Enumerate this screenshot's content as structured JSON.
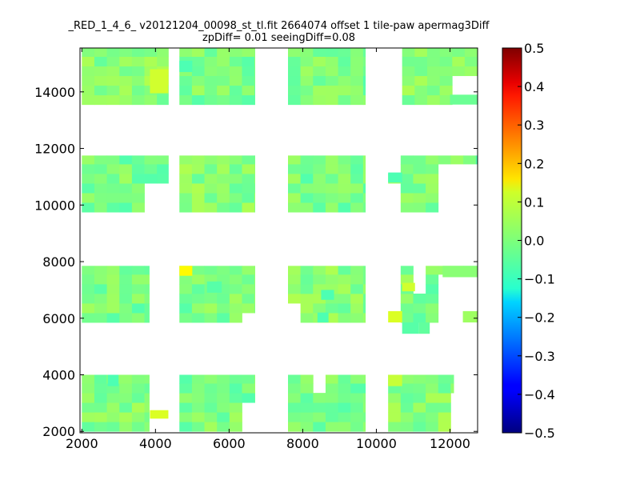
{
  "chart_data": {
    "type": "heatmap",
    "title_line1": "_RED_1_4_6_ v20121204_00098_st_tl.fit 2664074 offset 1 tile-paw apermag3Diff",
    "title_line2": "zpDiff= 0.01 seeingDiff=0.08",
    "xlabel": "",
    "ylabel": "",
    "xlim": [
      1950,
      12750
    ],
    "ylim": [
      1950,
      15550
    ],
    "x_ticks": [
      2000,
      4000,
      6000,
      8000,
      10000,
      12000
    ],
    "y_ticks": [
      2000,
      4000,
      6000,
      8000,
      10000,
      12000,
      14000
    ],
    "x_tick_labels": [
      "2000",
      "4000",
      "6000",
      "8000",
      "10000",
      "12000"
    ],
    "y_tick_labels": [
      "2000",
      "4000",
      "6000",
      "8000",
      "10000",
      "12000",
      "14000"
    ],
    "colorbar": {
      "colormap": "jet",
      "range": [
        -0.5,
        0.5
      ],
      "ticks": [
        0.5,
        0.4,
        0.3,
        0.2,
        0.1,
        0.0,
        -0.1,
        -0.2,
        -0.3,
        -0.4,
        -0.5
      ],
      "tick_labels": [
        "0.5",
        "0.4",
        "0.3",
        "0.2",
        "0.1",
        "0.0",
        "−0.1",
        "−0.2",
        "−0.3",
        "−0.4",
        "−0.5"
      ]
    },
    "cell_size": [
      340,
      340
    ],
    "base_value": 0.0,
    "detectors": [
      {
        "x": [
          2000,
          3830
        ],
        "y": [
          2000,
          4000
        ]
      },
      {
        "x": [
          4650,
          6700
        ],
        "y": [
          2000,
          4000
        ]
      },
      {
        "x": [
          7600,
          9700
        ],
        "y": [
          2000,
          4000
        ]
      },
      {
        "x": [
          10320,
          12100
        ],
        "y": [
          2000,
          4000
        ]
      },
      {
        "x": [
          2000,
          3830
        ],
        "y": [
          5850,
          7850
        ]
      },
      {
        "x": [
          4650,
          6700
        ],
        "y": [
          5850,
          7850
        ]
      },
      {
        "x": [
          7600,
          9700
        ],
        "y": [
          5850,
          7850
        ]
      },
      {
        "x": [
          10320,
          12750
        ],
        "y": [
          5850,
          7850
        ]
      },
      {
        "x": [
          2000,
          4350
        ],
        "y": [
          9750,
          11750
        ]
      },
      {
        "x": [
          4650,
          6700
        ],
        "y": [
          9750,
          11750
        ]
      },
      {
        "x": [
          7600,
          9700
        ],
        "y": [
          9750,
          11750
        ]
      },
      {
        "x": [
          10320,
          12750
        ],
        "y": [
          9750,
          11750
        ]
      },
      {
        "x": [
          2000,
          4350
        ],
        "y": [
          13550,
          15550
        ]
      },
      {
        "x": [
          4650,
          6700
        ],
        "y": [
          13550,
          15550
        ]
      },
      {
        "x": [
          7600,
          9700
        ],
        "y": [
          13550,
          15550
        ]
      },
      {
        "x": [
          10700,
          12750
        ],
        "y": [
          13550,
          15550
        ]
      }
    ],
    "gaps": [
      {
        "x": [
          3830,
          4350
        ],
        "y": [
          2000,
          2600
        ]
      },
      {
        "x": [
          4350,
          4650
        ],
        "y": [
          2000,
          4000
        ]
      },
      {
        "x": [
          3830,
          4650
        ],
        "y": [
          9750,
          10900
        ]
      },
      {
        "x": [
          8250,
          8600
        ],
        "y": [
          3450,
          3900
        ]
      },
      {
        "x": [
          6350,
          6700
        ],
        "y": [
          2000,
          3000
        ]
      },
      {
        "x": [
          9700,
          10320
        ],
        "y": [
          2000,
          2600
        ]
      },
      {
        "x": [
          11950,
          12100
        ],
        "y": [
          2000,
          3300
        ]
      },
      {
        "x": [
          3830,
          4650
        ],
        "y": [
          5850,
          7850
        ]
      },
      {
        "x": [
          6700,
          7600
        ],
        "y": [
          5850,
          7850
        ]
      },
      {
        "x": [
          6300,
          6700
        ],
        "y": [
          5850,
          6250
        ]
      },
      {
        "x": [
          7600,
          7950
        ],
        "y": [
          5850,
          6650
        ]
      },
      {
        "x": [
          10320,
          10700
        ],
        "y": [
          5850,
          7850
        ]
      },
      {
        "x": [
          10700,
          10800
        ],
        "y": [
          6300,
          7850
        ]
      },
      {
        "x": [
          11150,
          11450
        ],
        "y": [
          6950,
          7850
        ]
      },
      {
        "x": [
          11800,
          12750
        ],
        "y": [
          5850,
          7450
        ]
      },
      {
        "x": [
          10320,
          10700
        ],
        "y": [
          5850,
          6250
        ]
      },
      {
        "x": [
          10700,
          11050
        ],
        "y": [
          5850,
          5900
        ]
      },
      {
        "x": [
          11450,
          12750
        ],
        "y": [
          5850,
          5900
        ]
      },
      {
        "x": [
          12750,
          12750
        ],
        "y": [
          5850,
          5900
        ]
      },
      {
        "x": [
          11800,
          12750
        ],
        "y": [
          9750,
          11350
        ]
      },
      {
        "x": [
          10320,
          10700
        ],
        "y": [
          9750,
          10800
        ]
      },
      {
        "x": [
          10320,
          10700
        ],
        "y": [
          11150,
          11750
        ]
      },
      {
        "x": [
          12000,
          12750
        ],
        "y": [
          13550,
          14700
        ]
      },
      {
        "x": [
          9700,
          10700
        ],
        "y": [
          13550,
          15550
        ]
      }
    ],
    "extra_cells": [
      {
        "x": [
          10320,
          10700
        ],
        "y": [
          10800,
          11150
        ],
        "v": -0.05
      },
      {
        "x": [
          10320,
          10700
        ],
        "y": [
          5850,
          6250
        ],
        "v": 0.09
      },
      {
        "x": [
          12350,
          12750
        ],
        "y": [
          5850,
          6250
        ],
        "v": 0.03
      },
      {
        "x": [
          10700,
          11050
        ],
        "y": [
          6950,
          7250
        ],
        "v": 0.08
      },
      {
        "x": [
          10700,
          11150
        ],
        "y": [
          5450,
          5850
        ],
        "v": -0.04
      },
      {
        "x": [
          11150,
          11450
        ],
        "y": [
          5450,
          5850
        ],
        "v": -0.03
      },
      {
        "x": [
          11800,
          12750
        ],
        "y": [
          7450,
          7850
        ],
        "v": 0.01
      },
      {
        "x": [
          12000,
          12750
        ],
        "y": [
          13550,
          13900
        ],
        "v": -0.02
      }
    ],
    "highlight_cells": [
      {
        "x": [
          4650,
          5000
        ],
        "y": [
          7500,
          7850
        ],
        "v": 0.13
      },
      {
        "x": [
          3850,
          4350
        ],
        "y": [
          2450,
          2750
        ],
        "v": 0.09
      },
      {
        "x": [
          3850,
          4350
        ],
        "y": [
          13950,
          14800
        ],
        "v": 0.08
      },
      {
        "x": [
          10320,
          10700
        ],
        "y": [
          3600,
          4000
        ],
        "v": 0.07
      },
      {
        "x": [
          2700,
          3000
        ],
        "y": [
          3600,
          4000
        ],
        "v": -0.05
      },
      {
        "x": [
          4650,
          5000
        ],
        "y": [
          14700,
          15100
        ],
        "v": -0.05
      },
      {
        "x": [
          8500,
          8850
        ],
        "y": [
          6650,
          7000
        ],
        "v": -0.05
      },
      {
        "x": [
          8400,
          8700
        ],
        "y": [
          5850,
          6200
        ],
        "v": -0.05
      },
      {
        "x": [
          5400,
          5800
        ],
        "y": [
          6900,
          7300
        ],
        "v": -0.04
      }
    ]
  }
}
